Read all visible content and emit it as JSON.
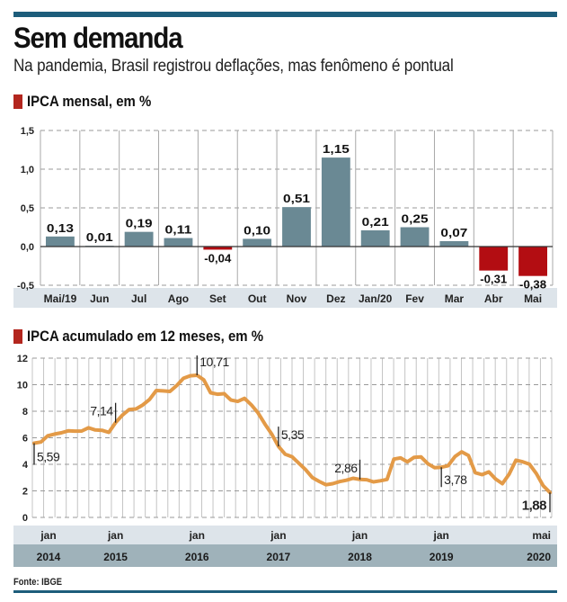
{
  "header": {
    "title": "Sem demanda",
    "subtitle": "Na pandemia, Brasil registrou deflações, mas fenômeno é pontual"
  },
  "colors": {
    "rule": "#1d5d7b",
    "positive_bar": "#6a8994",
    "negative_bar": "#b30d12",
    "line": "#e39a47",
    "section_marker": "#b3261e",
    "category_band_light": "#dde4ea",
    "category_band_dark": "#9fb2ba"
  },
  "footer": {
    "source": "Fonte: IBGE"
  },
  "chart_data": [
    {
      "type": "bar",
      "title": "IPCA mensal, em %",
      "xlabel": "",
      "ylabel": "",
      "categories": [
        "Mai/19",
        "Jun",
        "Jul",
        "Ago",
        "Set",
        "Out",
        "Nov",
        "Dez",
        "Jan/20",
        "Fev",
        "Mar",
        "Abr",
        "Mai"
      ],
      "values": [
        0.13,
        0.01,
        0.19,
        0.11,
        -0.04,
        0.1,
        0.51,
        1.15,
        0.21,
        0.25,
        0.07,
        -0.31,
        -0.38
      ],
      "data_labels": [
        "0,13",
        "0,01",
        "0,19",
        "0,11",
        "-0,04",
        "0,10",
        "0,51",
        "1,15",
        "0,21",
        "0,25",
        "0,07",
        "-0,31",
        "-0,38"
      ],
      "ylim": [
        -0.5,
        1.5
      ],
      "yticks": [
        1.5,
        1.0,
        0.5,
        0.0,
        -0.5
      ],
      "ytick_labels": [
        "1,5",
        "1,0",
        "0,5",
        "0,0",
        "-0,5"
      ],
      "grid": true,
      "legend": "none"
    },
    {
      "type": "line",
      "title": "IPCA acumulado em 12 meses, em %",
      "xlabel": "",
      "ylabel": "",
      "x_start": "2014-01",
      "x_end": "2020-05",
      "series": [
        {
          "name": "IPCA acumulado 12 meses",
          "values": [
            5.59,
            5.68,
            6.15,
            6.28,
            6.37,
            6.52,
            6.5,
            6.51,
            6.75,
            6.59,
            6.56,
            6.41,
            7.14,
            7.7,
            8.13,
            8.17,
            8.47,
            8.89,
            9.56,
            9.53,
            9.49,
            9.93,
            10.48,
            10.67,
            10.71,
            10.36,
            9.39,
            9.28,
            9.32,
            8.84,
            8.74,
            8.97,
            8.48,
            7.87,
            7.04,
            6.29,
            5.35,
            4.76,
            4.57,
            4.08,
            3.6,
            3.0,
            2.71,
            2.46,
            2.54,
            2.7,
            2.8,
            2.95,
            2.86,
            2.84,
            2.68,
            2.76,
            2.86,
            4.39,
            4.48,
            4.19,
            4.53,
            4.56,
            4.05,
            3.75,
            3.78,
            3.89,
            4.58,
            4.94,
            4.66,
            3.37,
            3.22,
            3.43,
            2.89,
            2.54,
            3.27,
            4.31,
            4.19,
            4.01,
            3.3,
            2.4,
            1.88
          ]
        }
      ],
      "annotations": [
        {
          "label": "5,59",
          "x": "2014-01",
          "value": 5.59
        },
        {
          "label": "7,14",
          "x": "2015-01",
          "value": 7.14
        },
        {
          "label": "10,71",
          "x": "2016-01",
          "value": 10.71
        },
        {
          "label": "5,35",
          "x": "2017-01",
          "value": 5.35
        },
        {
          "label": "2,86",
          "x": "2018-01",
          "value": 2.86
        },
        {
          "label": "3,78",
          "x": "2019-01",
          "value": 3.78
        },
        {
          "label": "1,88",
          "x": "2020-05",
          "value": 1.88,
          "bold": true
        }
      ],
      "ylim": [
        0,
        12
      ],
      "yticks": [
        12,
        10,
        8,
        6,
        4,
        2,
        0
      ],
      "ytick_labels": [
        "12",
        "10",
        "8",
        "6",
        "4",
        "2",
        "0"
      ],
      "xtick_months": [
        "jan",
        "jan",
        "jan",
        "jan",
        "jan",
        "jan",
        "mai"
      ],
      "xtick_years": [
        "2014",
        "2015",
        "2016",
        "2017",
        "2018",
        "2019",
        "2020"
      ],
      "xtick_index": [
        0,
        12,
        24,
        36,
        48,
        60,
        76
      ],
      "grid": true,
      "legend": "none"
    }
  ]
}
